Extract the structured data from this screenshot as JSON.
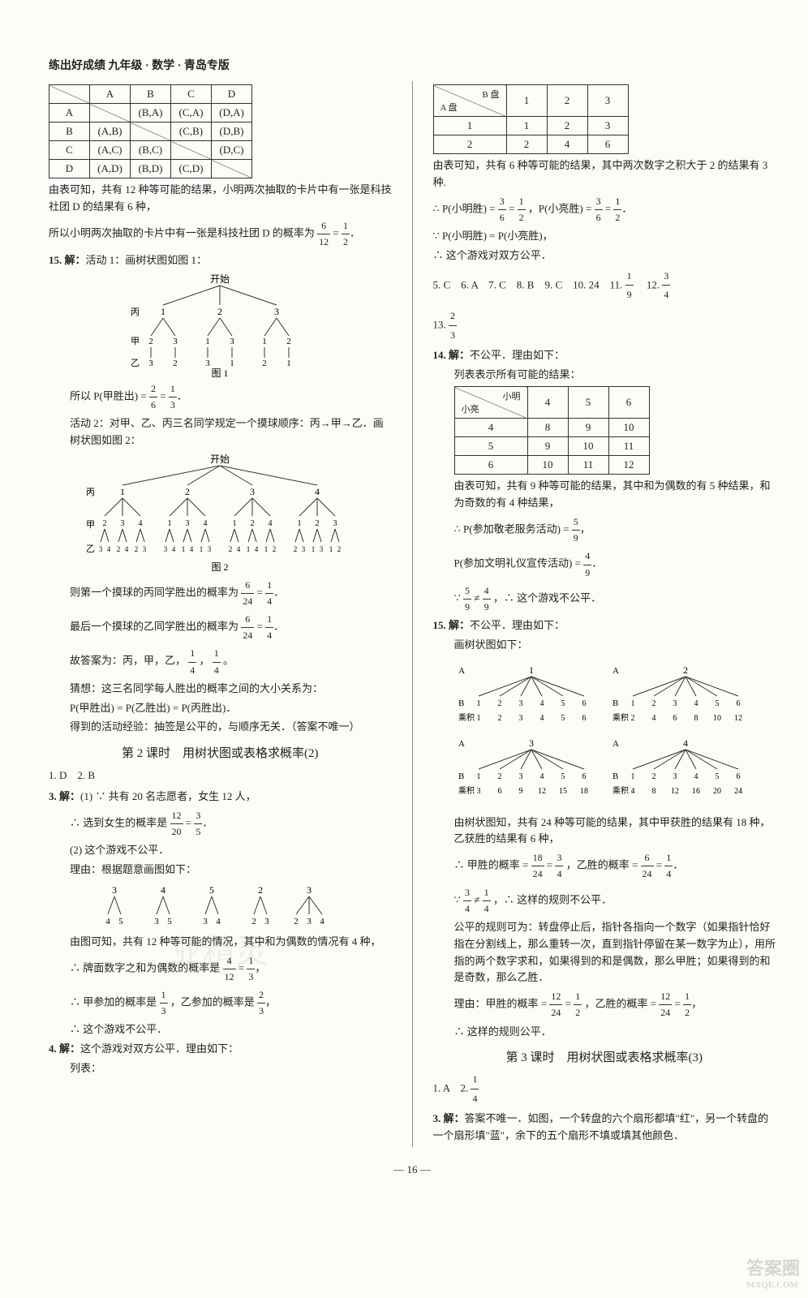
{
  "header": "练出好成绩 九年级 · 数学 · 青岛专版",
  "page_number": "— 16 —",
  "corner": {
    "line1": "答案圈",
    "line2": "MXQE.COM"
  },
  "left": {
    "table1": {
      "headers": [
        "",
        "A",
        "B",
        "C",
        "D"
      ],
      "rows": [
        [
          "A",
          "",
          "(B,A)",
          "(C,A)",
          "(D,A)"
        ],
        [
          "B",
          "(A,B)",
          "",
          "(C,B)",
          "(D,B)"
        ],
        [
          "C",
          "(A,C)",
          "(B,C)",
          "",
          "(D,C)"
        ],
        [
          "D",
          "(A,D)",
          "(B,D)",
          "(C,D)",
          ""
        ]
      ]
    },
    "para1": "由表可知，共有 12 种等可能的结果，小明两次抽取的卡片中有一张是科技社团 D 的结果有 6 种，",
    "para2": "所以小明两次抽取的卡片中有一张是科技社团 D 的概率为",
    "frac1": {
      "n": "6",
      "d": "12"
    },
    "eq1": "= ",
    "frac1b": {
      "n": "1",
      "d": "2"
    },
    "q15_label": "15. 解：",
    "q15_text1": "活动 1：画树状图如图 1：",
    "tree1_caption": "图 1",
    "tree1": {
      "root": "开始",
      "level1_label": "丙",
      "level1": [
        "1",
        "2",
        "3"
      ],
      "level2_label": "甲",
      "level2": [
        [
          "2",
          "3"
        ],
        [
          "1",
          "3"
        ],
        [
          "1",
          "2"
        ]
      ],
      "level3_label": "乙",
      "level3": [
        [
          "3",
          "2"
        ],
        [
          "3",
          "1"
        ],
        [
          "2",
          "1"
        ]
      ]
    },
    "q15_text2_a": "所以 P(甲胜出) = ",
    "q15_frac2": {
      "n": "2",
      "d": "6"
    },
    "q15_eq2": " = ",
    "q15_frac2b": {
      "n": "1",
      "d": "3"
    },
    "q15_text3": "活动 2：对甲、乙、丙三名同学规定一个摸球顺序：丙→甲→乙．画树状图如图 2：",
    "tree2_caption": "图 2",
    "tree2": {
      "root": "开始",
      "level1_label": "丙",
      "level1": [
        "1",
        "2",
        "3",
        "4"
      ],
      "level2_label": "甲",
      "level3_label": "乙",
      "branches": [
        {
          "l2": [
            "2",
            "3",
            "4"
          ],
          "l3": [
            "3 4",
            "2 4",
            "2 3"
          ]
        },
        {
          "l2": [
            "1",
            "3",
            "4"
          ],
          "l3": [
            "3 4",
            "1 4",
            "1 3"
          ]
        },
        {
          "l2": [
            "1",
            "2",
            "4"
          ],
          "l3": [
            "2 4",
            "1 4",
            "1 2"
          ]
        },
        {
          "l2": [
            "1",
            "2",
            "3"
          ],
          "l3": [
            "2 3",
            "1 3",
            "1 2"
          ]
        }
      ]
    },
    "q15_text4_a": "则第一个摸球的丙同学胜出的概率为",
    "q15_frac4": {
      "n": "6",
      "d": "24"
    },
    "q15_eq4": " = ",
    "q15_frac4b": {
      "n": "1",
      "d": "4"
    },
    "q15_text5_a": "最后一个摸球的乙同学胜出的概率为",
    "q15_frac5": {
      "n": "6",
      "d": "24"
    },
    "q15_eq5": " = ",
    "q15_frac5b": {
      "n": "1",
      "d": "4"
    },
    "q15_text6_a": "故答案为：丙，甲，乙，",
    "q15_frac6a": {
      "n": "1",
      "d": "4"
    },
    "q15_text6_b": "，",
    "q15_frac6b": {
      "n": "1",
      "d": "4"
    },
    "q15_text6_c": "。",
    "q15_text7": "猜想：这三名同学每人胜出的概率之间的大小关系为：",
    "q15_text8": "P(甲胜出) = P(乙胜出) = P(丙胜出)．",
    "q15_text9": "得到的活动经验：抽签是公平的，与顺序无关．（答案不唯一）",
    "section2_title": "第 2 课时　用树状图或表格求概率(2)",
    "ans_line1": "1. D　2. B",
    "q3_label": "3. 解：",
    "q3_text1": "(1) ∵ 共有 20 名志愿者，女生 12 人，",
    "q3_text2_a": "∴ 选到女生的概率是",
    "q3_frac1": {
      "n": "12",
      "d": "20"
    },
    "q3_eq1": " = ",
    "q3_frac1b": {
      "n": "3",
      "d": "5"
    },
    "q3_text3": "(2) 这个游戏不公平．",
    "q3_text4": "理由：根据题意画图如下：",
    "tree3": {
      "level1": [
        "3",
        "4",
        "5"
      ],
      "branches": [
        [
          "4",
          "5"
        ],
        [
          "3",
          "5"
        ],
        [
          "3",
          "4"
        ]
      ],
      "extra": {
        "top": [
          "2",
          "3"
        ],
        "bot": [
          "2",
          "3",
          "4"
        ]
      }
    },
    "q3_text5": "由图可知，共有 12 种等可能的情况，其中和为偶数的情况有 4 种，",
    "q3_text6_a": "∴ 牌面数字之和为偶数的概率是",
    "q3_frac6": {
      "n": "4",
      "d": "12"
    },
    "q3_eq6": " = ",
    "q3_frac6b": {
      "n": "1",
      "d": "3"
    },
    "q3_text7_a": "∴ 甲参加的概率是",
    "q3_frac7a": {
      "n": "1",
      "d": "3"
    },
    "q3_text7_b": "，乙参加的概率是",
    "q3_frac7b": {
      "n": "2",
      "d": "3"
    },
    "q3_text8": "∴ 这个游戏不公平．",
    "q4_label": "4. 解：",
    "q4_text1": "这个游戏对双方公平．理由如下：",
    "q4_text2": "列表："
  },
  "right": {
    "table2": {
      "diag_top": "B 盘",
      "diag_mid": "积",
      "diag_bot": "A 盘",
      "cols": [
        "1",
        "2",
        "3"
      ],
      "rows": [
        [
          "1",
          "1",
          "2",
          "3"
        ],
        [
          "2",
          "2",
          "4",
          "6"
        ]
      ]
    },
    "r_text1": "由表可知，共有 6 种等可能的结果，其中两次数字之积大于 2 的结果有 3 种.",
    "r_text2_a": "∴ P(小明胜) = ",
    "r_frac2a": {
      "n": "3",
      "d": "6"
    },
    "r_eq2a": " = ",
    "r_frac2b": {
      "n": "1",
      "d": "2"
    },
    "r_text2_b": "，P(小亮胜) = ",
    "r_frac2c": {
      "n": "3",
      "d": "6"
    },
    "r_eq2b": " = ",
    "r_frac2d": {
      "n": "1",
      "d": "2"
    },
    "r_text3": "∵ P(小明胜) = P(小亮胜)，",
    "r_text4": "∴ 这个游戏对双方公平．",
    "ans_line2_a": "5. C　6. A　7. C　8. B　9. C　10. 24　11. ",
    "ans_frac11": {
      "n": "1",
      "d": "9"
    },
    "ans_line2_b": "　12. ",
    "ans_frac12": {
      "n": "3",
      "d": "4"
    },
    "ans_line3_a": "13. ",
    "ans_frac13": {
      "n": "2",
      "d": "3"
    },
    "q14_label": "14. 解：",
    "q14_text1": "不公平．理由如下：",
    "q14_text2": "列表表示所有可能的结果：",
    "table3": {
      "diag_top": "小明",
      "diag_mid": "和",
      "diag_bot": "小亮",
      "cols": [
        "4",
        "5",
        "6"
      ],
      "rows": [
        [
          "4",
          "8",
          "9",
          "10"
        ],
        [
          "5",
          "9",
          "10",
          "11"
        ],
        [
          "6",
          "10",
          "11",
          "12"
        ]
      ]
    },
    "q14_text3": "由表可知，共有 9 种等可能的结果，其中和为偶数的有 5 种结果，和为奇数的有 4 种结果，",
    "q14_text4_a": "∴ P(参加敬老服务活动) = ",
    "q14_frac4": {
      "n": "5",
      "d": "9"
    },
    "q14_text5_a": "P(参加文明礼仪宣传活动) = ",
    "q14_frac5": {
      "n": "4",
      "d": "9"
    },
    "q14_text6_a": "∵ ",
    "q14_frac6a": {
      "n": "5",
      "d": "9"
    },
    "q14_text6_b": " ≠ ",
    "q14_frac6b": {
      "n": "4",
      "d": "9"
    },
    "q14_text6_c": "，∴ 这个游戏不公平．",
    "q15r_label": "15. 解：",
    "q15r_text1": "不公平．理由如下：",
    "q15r_text2": "画树状图如下：",
    "tree4": {
      "roots": [
        "1",
        "2",
        "3",
        "4"
      ],
      "A_label": "A",
      "B_label": "B",
      "prod_label": "乘积",
      "leaves": [
        "1",
        "2",
        "3",
        "4",
        "5",
        "6"
      ],
      "products": [
        [
          "1",
          "2",
          "3",
          "4",
          "5",
          "6"
        ],
        [
          "2",
          "4",
          "6",
          "8",
          "10",
          "12"
        ],
        [
          "3",
          "6",
          "9",
          "12",
          "15",
          "18"
        ],
        [
          "4",
          "8",
          "12",
          "16",
          "20",
          "24"
        ]
      ]
    },
    "q15r_text3": "由树状图知，共有 24 种等可能的结果，其中甲获胜的结果有 18 种，乙获胜的结果有 6 种，",
    "q15r_text4_a": "∴ 甲胜的概率 = ",
    "q15r_frac4a": {
      "n": "18",
      "d": "24"
    },
    "q15r_eq4a": " = ",
    "q15r_frac4b": {
      "n": "3",
      "d": "4"
    },
    "q15r_text4_b": "，乙胜的概率 = ",
    "q15r_frac4c": {
      "n": "6",
      "d": "24"
    },
    "q15r_eq4b": " = ",
    "q15r_frac4d": {
      "n": "1",
      "d": "4"
    },
    "q15r_text5_a": "∵ ",
    "q15r_frac5a": {
      "n": "3",
      "d": "4"
    },
    "q15r_text5_b": " ≠ ",
    "q15r_frac5b": {
      "n": "1",
      "d": "4"
    },
    "q15r_text5_c": "，∴ 这样的规则不公平．",
    "q15r_text6": "公平的规则可为：转盘停止后，指针各指向一个数字（如果指针恰好指在分割线上，那么重转一次，直到指针停留在某一数字为止），用所指的两个数字求和，如果得到的和是偶数，那么甲胜；如果得到的和是奇数，那么乙胜．",
    "q15r_text7_a": "理由：甲胜的概率 = ",
    "q15r_frac7a": {
      "n": "12",
      "d": "24"
    },
    "q15r_eq7a": " = ",
    "q15r_frac7b": {
      "n": "1",
      "d": "2"
    },
    "q15r_text7_b": "，乙胜的概率 = ",
    "q15r_frac7c": {
      "n": "12",
      "d": "24"
    },
    "q15r_eq7b": " = ",
    "q15r_frac7d": {
      "n": "1",
      "d": "2"
    },
    "q15r_text8": "∴ 这样的规则公平．",
    "section3_title": "第 3 课时　用树状图或表格求概率(3)",
    "ans_line4_a": "1. A　2. ",
    "ans_frac_s3": {
      "n": "1",
      "d": "4"
    },
    "q3r_label": "3. 解：",
    "q3r_text": "答案不唯一．如图，一个转盘的六个扇形都填\"红\"，另一个转盘的一个扇形填\"蓝\"，余下的五个扇形不填或填其他颜色．"
  }
}
